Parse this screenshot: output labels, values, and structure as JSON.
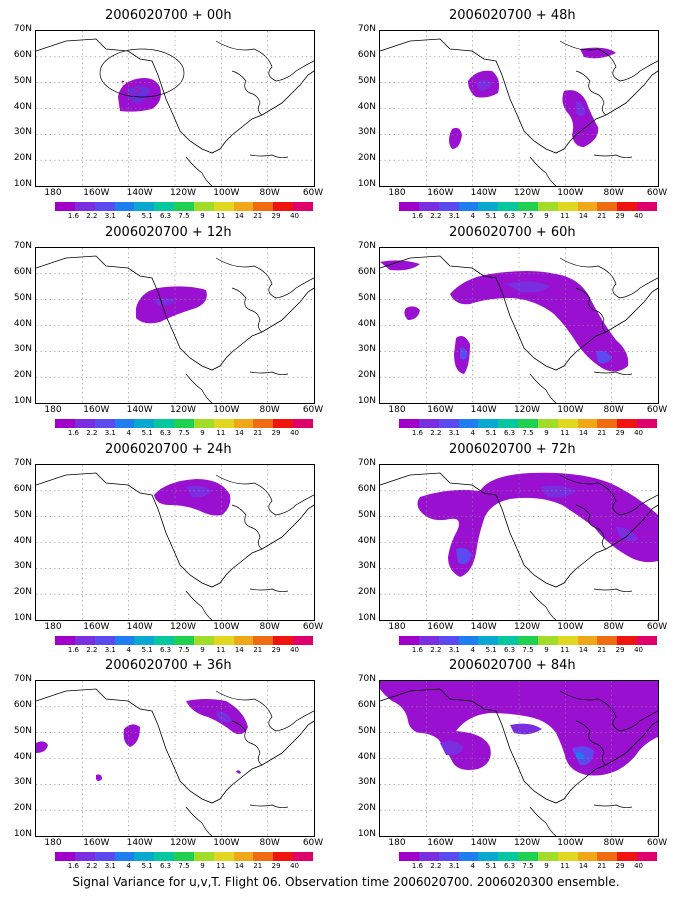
{
  "caption": "Signal Variance for u,v,T. Flight 06. Observation time 2006020700. 2006020300 ensemble.",
  "lat_labels": [
    "70N",
    "60N",
    "50N",
    "40N",
    "30N",
    "20N",
    "10N"
  ],
  "lon_labels": [
    "180",
    "160W",
    "140W",
    "120W",
    "100W",
    "80W",
    "60W"
  ],
  "colorbar": {
    "labels": [
      "1.6",
      "2.2",
      "3.1",
      "4",
      "5.1",
      "6.3",
      "7.5",
      "9",
      "11",
      "14",
      "21",
      "29",
      "40"
    ],
    "colors": [
      "#a000c8",
      "#7a2ee0",
      "#5a4af0",
      "#1e7ef0",
      "#08a8d0",
      "#06c8a0",
      "#20d050",
      "#a0dc28",
      "#e0d820",
      "#f0a818",
      "#f06c10",
      "#f01410",
      "#e0006c"
    ]
  },
  "panels": [
    {
      "title": "2006020700 + 00h"
    },
    {
      "title": "2006020700 + 48h"
    },
    {
      "title": "2006020700 + 12h"
    },
    {
      "title": "2006020700 + 60h"
    },
    {
      "title": "2006020700 + 24h"
    },
    {
      "title": "2006020700 + 72h"
    },
    {
      "title": "2006020700 + 36h"
    },
    {
      "title": "2006020700 + 84h"
    }
  ]
}
